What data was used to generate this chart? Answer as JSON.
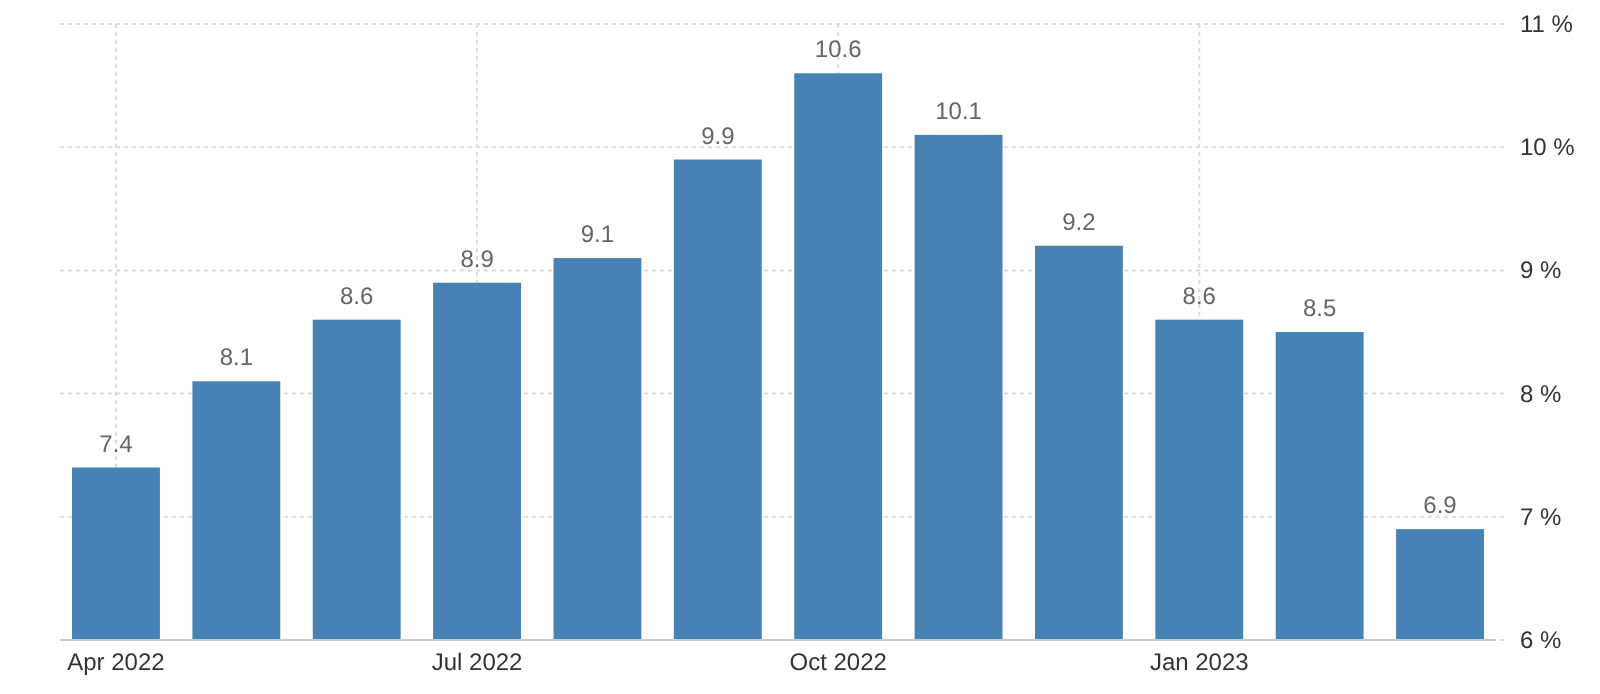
{
  "chart_data": {
    "type": "bar",
    "categories": [
      "Apr 2022",
      null,
      null,
      "Jul 2022",
      null,
      null,
      "Oct 2022",
      null,
      null,
      "Jan 2023",
      null,
      null
    ],
    "values": [
      7.4,
      8.1,
      8.6,
      8.9,
      9.1,
      9.9,
      10.6,
      10.1,
      9.2,
      8.6,
      8.5,
      6.9
    ],
    "color": "#4682b4",
    "ylim": [
      6,
      11
    ],
    "yticks": [
      {
        "value": 6,
        "label": "6 %"
      },
      {
        "value": 7,
        "label": "7 %"
      },
      {
        "value": 8,
        "label": "8 %"
      },
      {
        "value": 9,
        "label": "9 %"
      },
      {
        "value": 10,
        "label": "10 %"
      },
      {
        "value": 11,
        "label": "11 %"
      }
    ],
    "grid": true,
    "data_labels": true
  }
}
